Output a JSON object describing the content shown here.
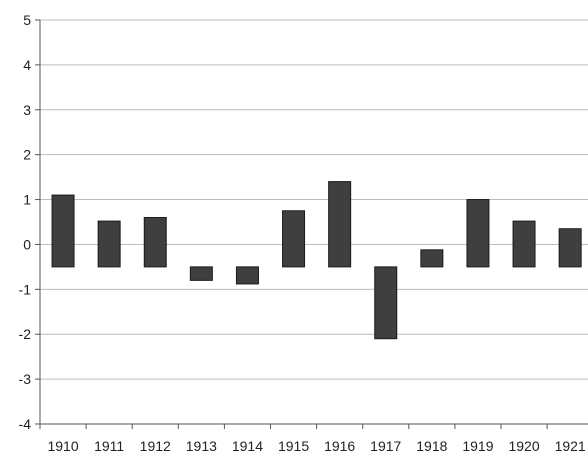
{
  "chart_data": {
    "type": "bar",
    "title": "",
    "xlabel": "",
    "ylabel": "",
    "categories": [
      "1910",
      "1911",
      "1912",
      "1913",
      "1914",
      "1915",
      "1916",
      "1917",
      "1918",
      "1919",
      "1920",
      "1921"
    ],
    "baseline": -0.5,
    "values": [
      1.1,
      0.52,
      0.6,
      -0.8,
      -0.88,
      0.75,
      1.4,
      -2.1,
      -0.12,
      1.0,
      0.52,
      0.35
    ],
    "ylim": [
      -4,
      5
    ],
    "yticks": [
      -4,
      -3,
      -2,
      -1,
      0,
      1,
      2,
      3,
      4,
      5
    ],
    "ytick_labels": [
      "-4",
      "-3",
      "-2",
      "-1",
      "0",
      "1",
      "2",
      "3",
      "4",
      "5"
    ],
    "grid": true,
    "legend": "none",
    "colors": {
      "bar": "#3f3f3f",
      "grid": "#bdbdbd",
      "axis": "#555555"
    }
  }
}
